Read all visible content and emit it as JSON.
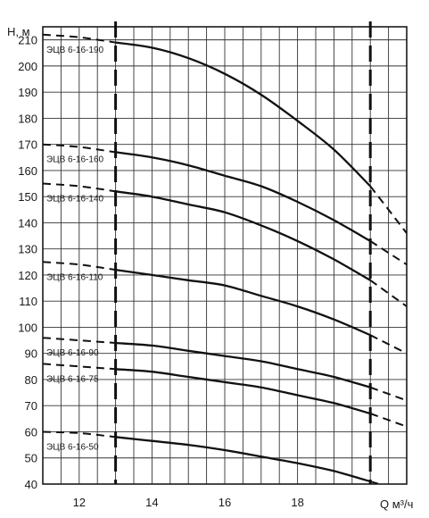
{
  "chart_data": {
    "type": "line",
    "ylabel": "H, м",
    "xlabel": "Q м³/ч",
    "xlim": [
      11,
      21
    ],
    "ylim": [
      40,
      215
    ],
    "x_ticks": [
      12,
      14,
      16,
      18
    ],
    "y_ticks": [
      40,
      50,
      60,
      70,
      80,
      90,
      100,
      110,
      120,
      130,
      140,
      150,
      160,
      170,
      180,
      190,
      200,
      210
    ],
    "grid": true,
    "operating_range": [
      13,
      20
    ],
    "series": [
      {
        "name": "ЭЦВ 6-16-190",
        "x": [
          11,
          12,
          13,
          14,
          15,
          16,
          17,
          18,
          19,
          20,
          21
        ],
        "values": [
          212,
          211,
          209,
          207,
          203,
          197,
          189,
          179,
          168,
          154,
          136
        ]
      },
      {
        "name": "ЭЦВ 6-16-160",
        "x": [
          11,
          12,
          13,
          14,
          15,
          16,
          17,
          18,
          19,
          20,
          21
        ],
        "values": [
          170,
          169,
          167,
          165,
          162,
          158,
          154,
          148,
          141,
          133,
          124
        ]
      },
      {
        "name": "ЭЦВ 6-16-140",
        "x": [
          11,
          12,
          13,
          14,
          15,
          16,
          17,
          18,
          19,
          20,
          21
        ],
        "values": [
          155,
          154,
          152,
          150,
          147,
          144,
          139,
          133,
          126,
          118,
          108
        ]
      },
      {
        "name": "ЭЦВ 6-16-110",
        "x": [
          11,
          12,
          13,
          14,
          15,
          16,
          17,
          18,
          19,
          20,
          21
        ],
        "values": [
          125,
          124,
          122,
          120,
          118,
          116,
          112,
          108,
          103,
          97,
          90
        ]
      },
      {
        "name": "ЭЦВ 6-16-90",
        "x": [
          11,
          12,
          13,
          14,
          15,
          16,
          17,
          18,
          19,
          20,
          21
        ],
        "values": [
          96,
          95,
          94,
          93,
          91,
          89,
          87,
          84,
          81,
          77,
          72
        ]
      },
      {
        "name": "ЭЦВ 6-16-75",
        "x": [
          11,
          12,
          13,
          14,
          15,
          16,
          17,
          18,
          19,
          20,
          21
        ],
        "values": [
          86,
          85,
          84,
          83,
          81,
          79,
          77,
          74,
          71,
          67,
          62
        ]
      },
      {
        "name": "ЭЦВ 6-16-50",
        "x": [
          11,
          12,
          13,
          14,
          15,
          16,
          17,
          18,
          19,
          20,
          21
        ],
        "values": [
          60,
          59.5,
          58,
          56.5,
          55,
          53,
          50.5,
          48,
          45,
          41,
          37
        ]
      }
    ]
  }
}
